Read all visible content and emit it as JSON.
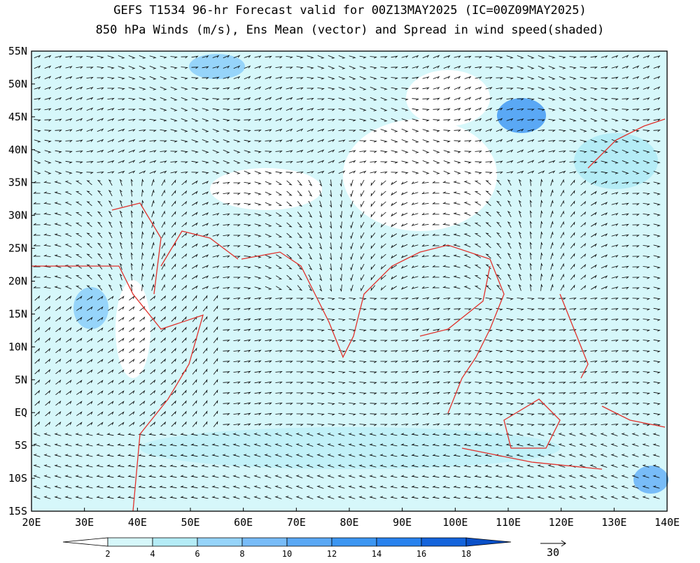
{
  "title": {
    "line1": "GEFS T1534 96-hr Forecast valid for 00Z13MAY2025 (IC=00Z09MAY2025)",
    "line2": "850 hPa Winds (m/s), Ens Mean (vector) and Spread in wind speed(shaded)"
  },
  "lon_labels": [
    "20E",
    "30E",
    "40E",
    "50E",
    "60E",
    "70E",
    "80E",
    "90E",
    "100E",
    "110E",
    "120E",
    "130E",
    "140E"
  ],
  "lat_labels": [
    "55N",
    "50N",
    "45N",
    "40N",
    "35N",
    "30N",
    "25N",
    "20N",
    "15N",
    "10N",
    "5N",
    "EQ",
    "5S",
    "10S",
    "15S"
  ],
  "colorbar": {
    "labels": [
      2,
      4,
      6,
      8,
      10,
      12,
      14,
      16,
      18
    ],
    "colors": [
      "#ffffff",
      "#d6f7fa",
      "#b4ecf6",
      "#96d4fa",
      "#78bcf8",
      "#5aa8f5",
      "#3c96f2",
      "#2882ee",
      "#1464dc",
      "#0a50c8"
    ]
  },
  "reference_vector": "30"
}
